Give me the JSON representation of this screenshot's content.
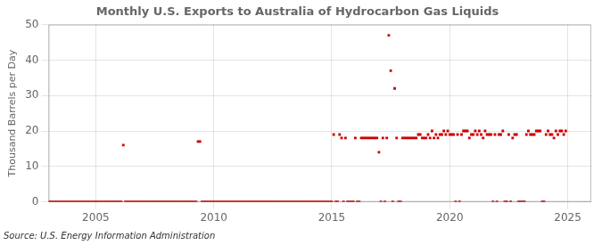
{
  "chart_data": {
    "type": "scatter",
    "title": "Monthly U.S. Exports to Australia of Hydrocarbon Gas Liquids",
    "ylabel": "Thousand Barrels per Day",
    "source": "Source: U.S. Energy Information Administration",
    "color": "#cc0000",
    "marker": "square",
    "grid": true,
    "xlim": [
      2003.0,
      2026.0
    ],
    "xticks": [
      2005,
      2010,
      2015,
      2020,
      2025
    ],
    "ylim": [
      0,
      50
    ],
    "yticks": [
      0,
      10,
      20,
      30,
      40,
      50
    ],
    "x": [
      2003.0,
      2003.083,
      2003.167,
      2003.25,
      2003.333,
      2003.417,
      2003.5,
      2003.583,
      2003.667,
      2003.75,
      2003.833,
      2003.917,
      2004.0,
      2004.083,
      2004.167,
      2004.25,
      2004.333,
      2004.417,
      2004.5,
      2004.583,
      2004.667,
      2004.75,
      2004.833,
      2004.917,
      2005.0,
      2005.083,
      2005.167,
      2005.25,
      2005.333,
      2005.417,
      2005.5,
      2005.583,
      2005.667,
      2005.75,
      2005.833,
      2005.917,
      2006.0,
      2006.083,
      2006.167,
      2006.25,
      2006.333,
      2006.417,
      2006.5,
      2006.583,
      2006.667,
      2006.75,
      2006.833,
      2006.917,
      2007.0,
      2007.083,
      2007.167,
      2007.25,
      2007.333,
      2007.417,
      2007.5,
      2007.583,
      2007.667,
      2007.75,
      2007.833,
      2007.917,
      2008.0,
      2008.083,
      2008.167,
      2008.25,
      2008.333,
      2008.417,
      2008.5,
      2008.583,
      2008.667,
      2008.75,
      2008.833,
      2008.917,
      2009.0,
      2009.083,
      2009.167,
      2009.25,
      2009.333,
      2009.417,
      2009.5,
      2009.583,
      2009.667,
      2009.75,
      2009.833,
      2009.917,
      2010.0,
      2010.083,
      2010.167,
      2010.25,
      2010.333,
      2010.417,
      2010.5,
      2010.583,
      2010.667,
      2010.75,
      2010.833,
      2010.917,
      2011.0,
      2011.083,
      2011.167,
      2011.25,
      2011.333,
      2011.417,
      2011.5,
      2011.583,
      2011.667,
      2011.75,
      2011.833,
      2011.917,
      2012.0,
      2012.083,
      2012.167,
      2012.25,
      2012.333,
      2012.417,
      2012.5,
      2012.583,
      2012.667,
      2012.75,
      2012.833,
      2012.917,
      2013.0,
      2013.083,
      2013.167,
      2013.25,
      2013.333,
      2013.417,
      2013.5,
      2013.583,
      2013.667,
      2013.75,
      2013.833,
      2013.917,
      2014.0,
      2014.083,
      2014.167,
      2014.25,
      2014.333,
      2014.417,
      2014.5,
      2014.583,
      2014.667,
      2014.75,
      2014.833,
      2014.917,
      2015.0,
      2015.083,
      2015.167,
      2015.25,
      2015.333,
      2015.417,
      2015.5,
      2015.583,
      2015.667,
      2015.75,
      2015.833,
      2015.917,
      2016.0,
      2016.083,
      2016.167,
      2016.25,
      2016.333,
      2016.417,
      2016.5,
      2016.583,
      2016.667,
      2016.75,
      2016.833,
      2016.917,
      2017.0,
      2017.083,
      2017.167,
      2017.25,
      2017.333,
      2017.417,
      2017.5,
      2017.583,
      2017.667,
      2017.75,
      2017.833,
      2017.917,
      2018.0,
      2018.083,
      2018.167,
      2018.25,
      2018.333,
      2018.417,
      2018.5,
      2018.583,
      2018.667,
      2018.75,
      2018.833,
      2018.917,
      2019.0,
      2019.083,
      2019.167,
      2019.25,
      2019.333,
      2019.417,
      2019.5,
      2019.583,
      2019.667,
      2019.75,
      2019.833,
      2019.917,
      2020.0,
      2020.083,
      2020.167,
      2020.25,
      2020.333,
      2020.417,
      2020.5,
      2020.583,
      2020.667,
      2020.75,
      2020.833,
      2020.917,
      2021.0,
      2021.083,
      2021.167,
      2021.25,
      2021.333,
      2021.417,
      2021.5,
      2021.583,
      2021.667,
      2021.75,
      2021.833,
      2021.917,
      2022.0,
      2022.083,
      2022.167,
      2022.25,
      2022.333,
      2022.417,
      2022.5,
      2022.583,
      2022.667,
      2022.75,
      2022.833,
      2022.917,
      2023.0,
      2023.083,
      2023.167,
      2023.25,
      2023.333,
      2023.417,
      2023.5,
      2023.583,
      2023.667,
      2023.75,
      2023.833,
      2023.917,
      2024.0,
      2024.083,
      2024.167,
      2024.25,
      2024.333,
      2024.417,
      2024.5,
      2024.583,
      2024.667,
      2024.75,
      2024.833,
      2024.917
    ],
    "values": [
      0,
      0,
      0,
      0,
      0,
      0,
      0,
      0,
      0,
      0,
      0,
      0,
      0,
      0,
      0,
      0,
      0,
      0,
      0,
      0,
      0,
      0,
      0,
      0,
      0,
      0,
      0,
      0,
      0,
      0,
      0,
      0,
      0,
      0,
      0,
      0,
      0,
      0,
      16,
      0,
      0,
      0,
      0,
      0,
      0,
      0,
      0,
      0,
      0,
      0,
      0,
      0,
      0,
      0,
      0,
      0,
      0,
      0,
      0,
      0,
      0,
      0,
      0,
      0,
      0,
      0,
      0,
      0,
      0,
      0,
      0,
      0,
      0,
      0,
      0,
      0,
      17,
      17,
      0,
      0,
      0,
      0,
      0,
      0,
      0,
      0,
      0,
      0,
      0,
      0,
      0,
      0,
      0,
      0,
      0,
      0,
      0,
      0,
      0,
      0,
      0,
      0,
      0,
      0,
      0,
      0,
      0,
      0,
      0,
      0,
      0,
      0,
      0,
      0,
      0,
      0,
      0,
      0,
      0,
      0,
      0,
      0,
      0,
      0,
      0,
      0,
      0,
      0,
      0,
      0,
      0,
      0,
      0,
      0,
      0,
      0,
      0,
      0,
      0,
      0,
      0,
      0,
      0,
      0,
      0,
      19,
      0,
      0,
      19,
      18,
      0,
      18,
      0,
      0,
      0,
      0,
      18,
      0,
      0,
      18,
      18,
      18,
      18,
      18,
      18,
      18,
      18,
      18,
      14,
      0,
      18,
      0,
      18,
      47,
      37,
      0,
      32,
      18,
      0,
      0,
      18,
      18,
      18,
      18,
      18,
      18,
      18,
      18,
      19,
      19,
      18,
      18,
      18,
      19,
      18,
      20,
      18,
      19,
      18,
      19,
      19,
      20,
      19,
      20,
      19,
      19,
      19,
      0,
      19,
      0,
      19,
      20,
      20,
      20,
      18,
      19,
      19,
      20,
      19,
      20,
      19,
      18,
      20,
      19,
      19,
      19,
      0,
      19,
      0,
      19,
      19,
      20,
      0,
      0,
      19,
      0,
      18,
      19,
      19,
      0,
      0,
      0,
      0,
      19,
      20,
      19,
      19,
      19,
      20,
      20,
      20,
      0,
      0,
      19,
      20,
      19,
      19,
      18,
      20,
      19,
      20,
      20,
      19,
      20
    ]
  }
}
